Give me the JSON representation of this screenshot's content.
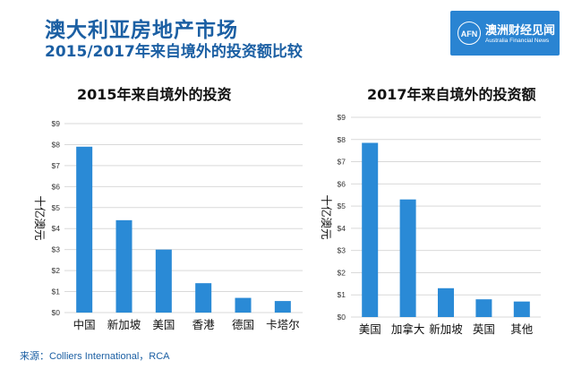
{
  "header": {
    "title": "澳大利亚房地产市场",
    "subtitle": "2015/2017年来自境外的投资额比较"
  },
  "logo": {
    "badge": "AFN",
    "name_cn": "澳洲财经见闻",
    "name_en": "Australia Financial News",
    "color": "#2a84d2"
  },
  "source": "来源：Colliers International，RCA",
  "chart_data": [
    {
      "type": "bar",
      "title": "2015年来自境外的投资",
      "ylabel": "十亿澳元",
      "categories": [
        "中国",
        "新加坡",
        "美国",
        "香港",
        "德国",
        "卡塔尔"
      ],
      "values": [
        7.9,
        4.4,
        3.0,
        1.4,
        0.7,
        0.55
      ],
      "ylim": [
        0,
        9
      ],
      "yticks": [
        "$0",
        "$1",
        "$2",
        "$3",
        "$4",
        "$5",
        "$6",
        "$7",
        "$8",
        "$9"
      ],
      "grid": true,
      "bar_color": "#2a8ad6"
    },
    {
      "type": "bar",
      "title": "2017年来自境外的投资额",
      "ylabel": "十亿澳元",
      "categories": [
        "美国",
        "加拿大",
        "新加坡",
        "英国",
        "其他"
      ],
      "values": [
        7.85,
        5.3,
        1.3,
        0.8,
        0.7
      ],
      "ylim": [
        0,
        9
      ],
      "yticks": [
        "$0",
        "$1",
        "$2",
        "$3",
        "$4",
        "$5",
        "$6",
        "$7",
        "$8",
        "$9"
      ],
      "grid": true,
      "bar_color": "#2a8ad6"
    }
  ]
}
